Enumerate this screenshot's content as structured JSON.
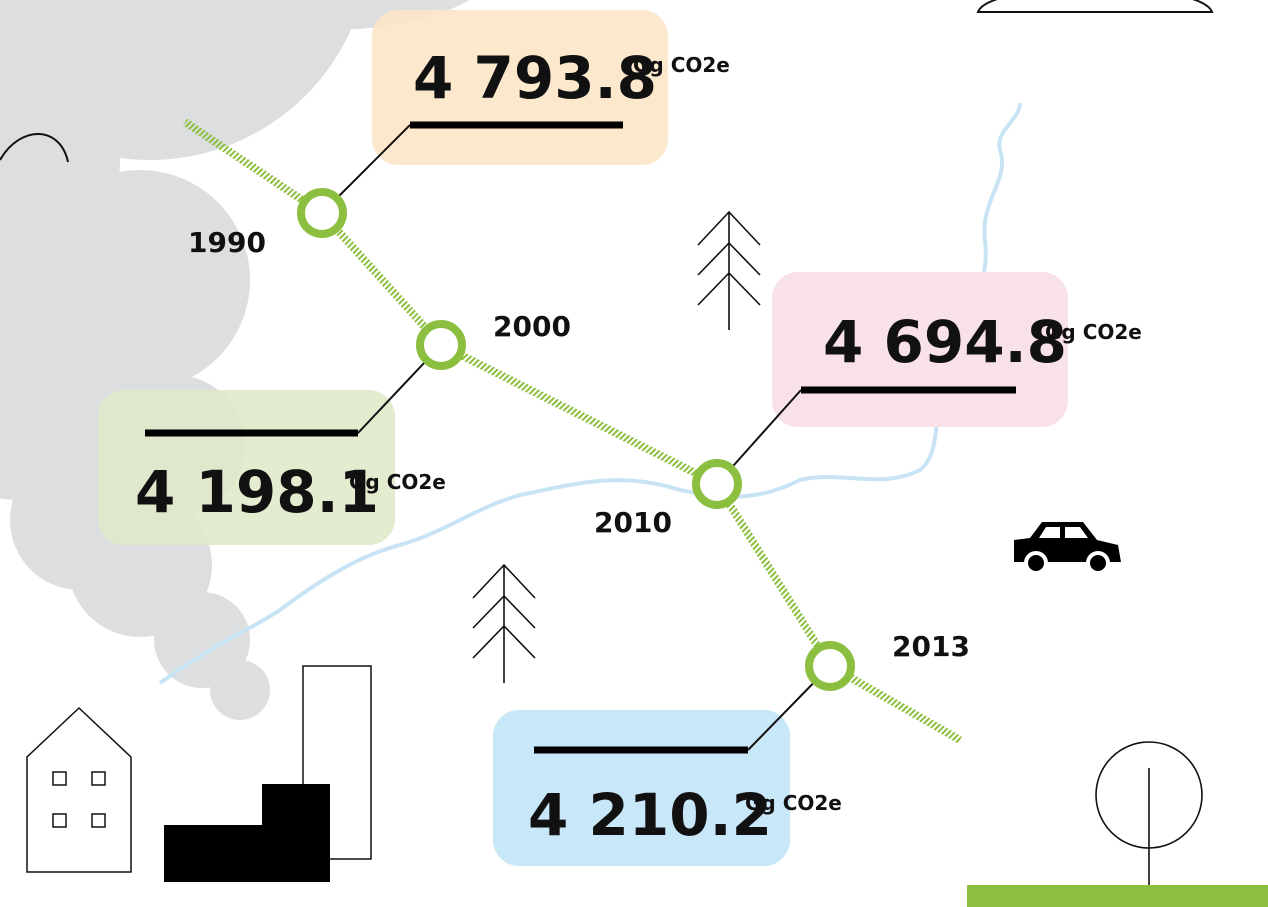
{
  "points": [
    {
      "year": "1990",
      "value": "4 793.8",
      "unit": "Gg CO2e"
    },
    {
      "year": "2000",
      "value": "4 198.1",
      "unit": "Gg CO2e"
    },
    {
      "year": "2010",
      "value": "4 694.8",
      "unit": "Gg CO2e"
    },
    {
      "year": "2013",
      "value": "4 210.2",
      "unit": "Gg CO2e"
    }
  ]
}
